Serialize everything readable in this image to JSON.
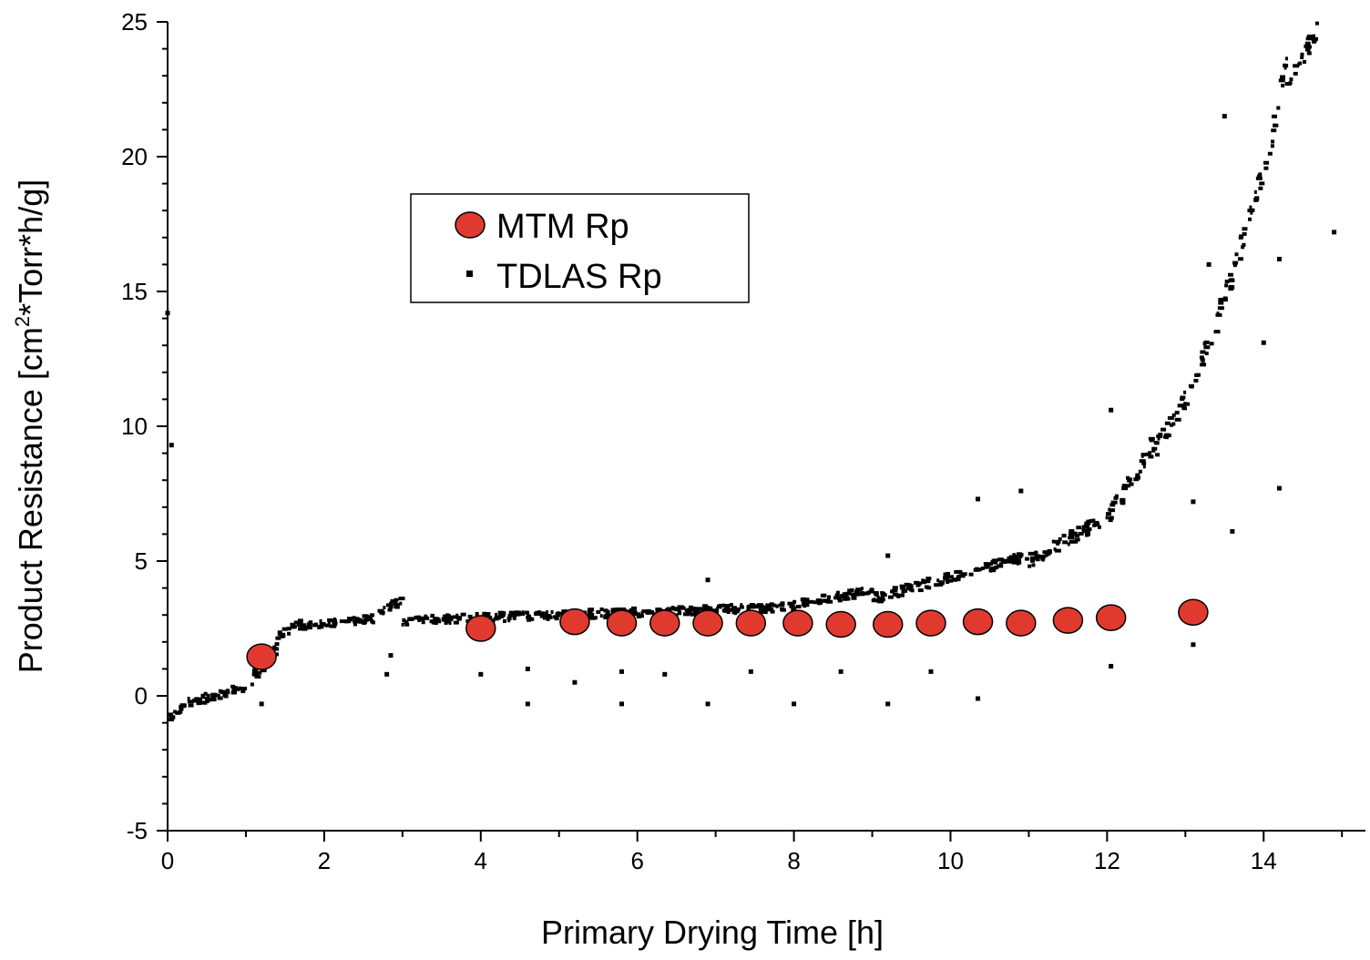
{
  "chart_data": {
    "type": "scatter",
    "xlabel": "Primary Drying Time [h]",
    "ylabel": {
      "before": "Product Resistance [cm",
      "sup": "2",
      "after": "*Torr*h/g]"
    },
    "xlim": [
      0,
      15.3
    ],
    "ylim": [
      -5,
      25
    ],
    "xticks": [
      0,
      2,
      4,
      6,
      8,
      10,
      12,
      14
    ],
    "yticks": [
      -5,
      0,
      5,
      10,
      15,
      20,
      25
    ],
    "legend": {
      "position": "upper-left"
    },
    "series": [
      {
        "name": "MTM Rp",
        "marker": "circle",
        "color": "#e03a2f",
        "points": [
          [
            1.2,
            1.45
          ],
          [
            4.0,
            2.5
          ],
          [
            5.2,
            2.75
          ],
          [
            5.8,
            2.7
          ],
          [
            6.35,
            2.7
          ],
          [
            6.9,
            2.7
          ],
          [
            7.45,
            2.7
          ],
          [
            8.05,
            2.7
          ],
          [
            8.6,
            2.65
          ],
          [
            9.2,
            2.65
          ],
          [
            9.75,
            2.7
          ],
          [
            10.35,
            2.75
          ],
          [
            10.9,
            2.7
          ],
          [
            11.5,
            2.8
          ],
          [
            12.05,
            2.9
          ],
          [
            13.1,
            3.1
          ]
        ]
      },
      {
        "name": "TDLAS Rp",
        "marker": "square",
        "color": "#000000",
        "segments": [
          [
            0.0,
            0.2,
            -0.9,
            -0.4
          ],
          [
            0.2,
            1.0,
            -0.3,
            0.3
          ],
          [
            1.0,
            1.4,
            0.3,
            1.8
          ],
          [
            1.4,
            1.7,
            2.2,
            2.7
          ],
          [
            1.7,
            2.6,
            2.6,
            2.85
          ],
          [
            2.6,
            3.0,
            2.8,
            3.6
          ],
          [
            3.0,
            8.0,
            2.8,
            3.3
          ],
          [
            8.0,
            9.0,
            3.4,
            3.9
          ],
          [
            9.0,
            10.0,
            3.6,
            4.4
          ],
          [
            10.0,
            11.0,
            4.4,
            5.2
          ],
          [
            11.0,
            12.0,
            5.0,
            6.6
          ],
          [
            12.0,
            12.6,
            6.5,
            9.4
          ],
          [
            12.6,
            13.1,
            9.0,
            11.5
          ],
          [
            13.1,
            13.6,
            11.5,
            15.5
          ],
          [
            13.6,
            14.0,
            15.5,
            19.5
          ],
          [
            14.0,
            14.3,
            19.0,
            23.5
          ],
          [
            14.3,
            14.7,
            22.5,
            24.8
          ]
        ],
        "outliers": [
          [
            0.0,
            14.2
          ],
          [
            0.05,
            9.3
          ],
          [
            1.2,
            -0.3
          ],
          [
            2.8,
            0.8
          ],
          [
            2.85,
            1.5
          ],
          [
            4.0,
            0.8
          ],
          [
            4.6,
            -0.3
          ],
          [
            4.6,
            1.0
          ],
          [
            5.2,
            0.5
          ],
          [
            5.8,
            -0.3
          ],
          [
            5.8,
            0.9
          ],
          [
            6.35,
            0.8
          ],
          [
            6.9,
            -0.3
          ],
          [
            6.9,
            4.3
          ],
          [
            7.45,
            0.9
          ],
          [
            8.0,
            -0.3
          ],
          [
            8.6,
            0.9
          ],
          [
            9.2,
            5.2
          ],
          [
            9.2,
            -0.3
          ],
          [
            9.75,
            0.9
          ],
          [
            10.35,
            -0.1
          ],
          [
            10.35,
            7.3
          ],
          [
            10.9,
            7.6
          ],
          [
            12.05,
            1.1
          ],
          [
            12.05,
            10.6
          ],
          [
            13.1,
            1.9
          ],
          [
            13.1,
            7.2
          ],
          [
            13.6,
            6.1
          ],
          [
            14.2,
            7.7
          ],
          [
            14.2,
            16.2
          ],
          [
            14.9,
            17.2
          ],
          [
            14.0,
            13.1
          ],
          [
            13.9,
            18.4
          ],
          [
            13.5,
            21.5
          ],
          [
            13.3,
            16.0
          ]
        ]
      }
    ]
  }
}
